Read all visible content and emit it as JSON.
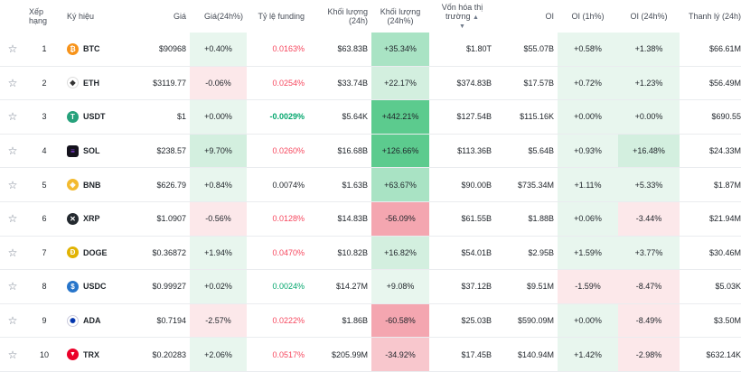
{
  "header": {
    "rank": "Xếp hạng",
    "symbol": "Ký hiệu",
    "price": "Giá",
    "price_change": "Giá(24h%)",
    "funding": "Tỷ lệ funding",
    "volume": "Khối lượng (24h)",
    "volume_change": "Khối lượng (24h%)",
    "market_cap": "Vốn hóa thị trường",
    "oi": "OI",
    "oi_1h": "OI (1h%)",
    "oi_24h": "OI (24h%)",
    "liquidation": "Thanh lý (24h)"
  },
  "rows": [
    {
      "rank": "1",
      "symbol": "BTC",
      "icon": "bitcoin-icon",
      "icon_color": "#f7931a",
      "icon_glyph": "₿",
      "price": "$90968",
      "price_change": "+0.40%",
      "funding": "0.0163%",
      "volume": "$63.83B",
      "volume_change": "+35.34%",
      "market_cap": "$1.80T",
      "oi": "$55.07B",
      "oi_1h": "+0.58%",
      "oi_24h": "+1.38%",
      "liquidation": "$66.61M"
    },
    {
      "rank": "2",
      "symbol": "ETH",
      "icon": "ethereum-icon",
      "icon_color": "#ffffff",
      "icon_glyph": "◆",
      "price": "$3119.77",
      "price_change": "-0.06%",
      "funding": "0.0254%",
      "volume": "$33.74B",
      "volume_change": "+22.17%",
      "market_cap": "$374.83B",
      "oi": "$17.57B",
      "oi_1h": "+0.72%",
      "oi_24h": "+1.23%",
      "liquidation": "$56.49M"
    },
    {
      "rank": "3",
      "symbol": "USDT",
      "icon": "tether-icon",
      "icon_color": "#26a17b",
      "icon_glyph": "T",
      "price": "$1",
      "price_change": "+0.00%",
      "funding": "-0.0029%",
      "volume": "$5.64K",
      "volume_change": "+442.21%",
      "market_cap": "$127.54B",
      "oi": "$115.16K",
      "oi_1h": "+0.00%",
      "oi_24h": "+0.00%",
      "liquidation": "$690.55"
    },
    {
      "rank": "4",
      "symbol": "SOL",
      "icon": "solana-icon",
      "icon_color": "#14121c",
      "icon_glyph": "≡",
      "price": "$238.57",
      "price_change": "+9.70%",
      "funding": "0.0260%",
      "volume": "$16.68B",
      "volume_change": "+126.66%",
      "market_cap": "$113.36B",
      "oi": "$5.64B",
      "oi_1h": "+0.93%",
      "oi_24h": "+16.48%",
      "liquidation": "$24.33M"
    },
    {
      "rank": "5",
      "symbol": "BNB",
      "icon": "bnb-icon",
      "icon_color": "#f3ba2f",
      "icon_glyph": "◈",
      "price": "$626.79",
      "price_change": "+0.84%",
      "funding": "0.0074%",
      "volume": "$1.63B",
      "volume_change": "+63.67%",
      "market_cap": "$90.00B",
      "oi": "$735.34M",
      "oi_1h": "+1.11%",
      "oi_24h": "+5.33%",
      "liquidation": "$1.87M"
    },
    {
      "rank": "6",
      "symbol": "XRP",
      "icon": "xrp-icon",
      "icon_color": "#23292f",
      "icon_glyph": "✕",
      "price": "$1.0907",
      "price_change": "-0.56%",
      "funding": "0.0128%",
      "volume": "$14.83B",
      "volume_change": "-56.09%",
      "market_cap": "$61.55B",
      "oi": "$1.88B",
      "oi_1h": "+0.06%",
      "oi_24h": "-3.44%",
      "liquidation": "$21.94M"
    },
    {
      "rank": "7",
      "symbol": "DOGE",
      "icon": "dogecoin-icon",
      "icon_color": "#e1b303",
      "icon_glyph": "Ð",
      "price": "$0.36872",
      "price_change": "+1.94%",
      "funding": "0.0470%",
      "volume": "$10.82B",
      "volume_change": "+16.82%",
      "market_cap": "$54.01B",
      "oi": "$2.95B",
      "oi_1h": "+1.59%",
      "oi_24h": "+3.77%",
      "liquidation": "$30.46M"
    },
    {
      "rank": "8",
      "symbol": "USDC",
      "icon": "usdc-icon",
      "icon_color": "#2775ca",
      "icon_glyph": "$",
      "price": "$0.99927",
      "price_change": "+0.02%",
      "funding": "0.0024%",
      "volume": "$14.27M",
      "volume_change": "+9.08%",
      "market_cap": "$37.12B",
      "oi": "$9.51M",
      "oi_1h": "-1.59%",
      "oi_24h": "-8.47%",
      "liquidation": "$5.03K"
    },
    {
      "rank": "9",
      "symbol": "ADA",
      "icon": "cardano-icon",
      "icon_color": "#0033ad",
      "icon_glyph": "✺",
      "price": "$0.7194",
      "price_change": "-2.57%",
      "funding": "0.0222%",
      "volume": "$1.86B",
      "volume_change": "-60.58%",
      "market_cap": "$25.03B",
      "oi": "$590.09M",
      "oi_1h": "+0.00%",
      "oi_24h": "-8.49%",
      "liquidation": "$3.50M"
    },
    {
      "rank": "10",
      "symbol": "TRX",
      "icon": "tron-icon",
      "icon_color": "#eb0029",
      "icon_glyph": "▼",
      "price": "$0.20283",
      "price_change": "+2.06%",
      "funding": "0.0517%",
      "volume": "$205.99M",
      "volume_change": "-34.92%",
      "market_cap": "$17.45B",
      "oi": "$140.94M",
      "oi_1h": "+1.42%",
      "oi_24h": "-2.98%",
      "liquidation": "$632.14K"
    }
  ]
}
